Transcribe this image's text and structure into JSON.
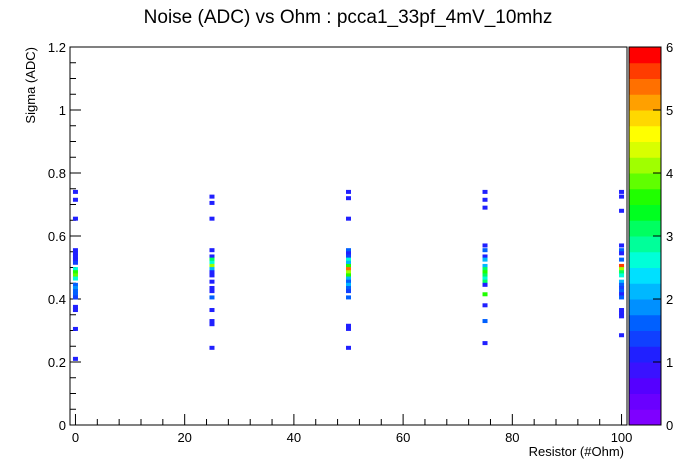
{
  "chart_data": {
    "type": "heatmap",
    "title": "Noise (ADC) vs Ohm : pcca1_33pf_4mV_10mhz",
    "xlabel": "Resistor (#Ohm)",
    "ylabel": "Sigma (ADC)",
    "xlim": [
      -1,
      101
    ],
    "ylim": [
      0,
      1.2
    ],
    "x_ticks": [
      0,
      20,
      40,
      60,
      80,
      100
    ],
    "y_ticks": [
      0,
      0.2,
      0.4,
      0.6,
      0.8,
      1,
      1.2
    ],
    "x_tick_labels": [
      "0",
      "20",
      "40",
      "60",
      "80",
      "100"
    ],
    "y_tick_labels": [
      "0",
      "0.2",
      "0.4",
      "0.6",
      "0.8",
      "1",
      "1.2"
    ],
    "colorbar": {
      "min": 0,
      "max": 6,
      "ticks": [
        0,
        1,
        2,
        3,
        4,
        5,
        6
      ],
      "tick_labels": [
        "0",
        "1",
        "2",
        "3",
        "4",
        "5",
        "6"
      ],
      "colors": [
        "#7f00ff",
        "#6a00ff",
        "#5500ff",
        "#3a12ff",
        "#2020ff",
        "#1040ff",
        "#0060ff",
        "#0090ff",
        "#00b8ff",
        "#00e0ff",
        "#00ffd8",
        "#00ff9a",
        "#00ff60",
        "#00ff20",
        "#20ff00",
        "#60ff00",
        "#a0ff00",
        "#d8ff00",
        "#ffff00",
        "#ffd800",
        "#ffa000",
        "#ff7000",
        "#ff3c00",
        "#ff0000"
      ]
    },
    "grid": false,
    "points": [
      {
        "x": 0,
        "y": 0.74,
        "z": 1
      },
      {
        "x": 0,
        "y": 0.715,
        "z": 1
      },
      {
        "x": 0,
        "y": 0.655,
        "z": 1
      },
      {
        "x": 0,
        "y": 0.555,
        "z": 1
      },
      {
        "x": 0,
        "y": 0.545,
        "z": 1
      },
      {
        "x": 0,
        "y": 0.535,
        "z": 1
      },
      {
        "x": 0,
        "y": 0.525,
        "z": 1
      },
      {
        "x": 0,
        "y": 0.515,
        "z": 1.3
      },
      {
        "x": 0,
        "y": 0.495,
        "z": 2.5
      },
      {
        "x": 0,
        "y": 0.485,
        "z": 3.5
      },
      {
        "x": 0,
        "y": 0.475,
        "z": 3.8
      },
      {
        "x": 0,
        "y": 0.465,
        "z": 2.5
      },
      {
        "x": 0,
        "y": 0.445,
        "z": 1.5
      },
      {
        "x": 0,
        "y": 0.435,
        "z": 1.8
      },
      {
        "x": 0,
        "y": 0.425,
        "z": 1.6
      },
      {
        "x": 0,
        "y": 0.415,
        "z": 1.5
      },
      {
        "x": 0,
        "y": 0.405,
        "z": 1.3
      },
      {
        "x": 0,
        "y": 0.375,
        "z": 1
      },
      {
        "x": 0,
        "y": 0.365,
        "z": 1
      },
      {
        "x": 0,
        "y": 0.305,
        "z": 1
      },
      {
        "x": 0,
        "y": 0.21,
        "z": 1
      },
      {
        "x": 25,
        "y": 0.725,
        "z": 1
      },
      {
        "x": 25,
        "y": 0.705,
        "z": 1
      },
      {
        "x": 25,
        "y": 0.655,
        "z": 1
      },
      {
        "x": 25,
        "y": 0.555,
        "z": 1
      },
      {
        "x": 25,
        "y": 0.535,
        "z": 1
      },
      {
        "x": 25,
        "y": 0.525,
        "z": 3
      },
      {
        "x": 25,
        "y": 0.515,
        "z": 2.5
      },
      {
        "x": 25,
        "y": 0.505,
        "z": 4
      },
      {
        "x": 25,
        "y": 0.495,
        "z": 2
      },
      {
        "x": 25,
        "y": 0.485,
        "z": 1
      },
      {
        "x": 25,
        "y": 0.475,
        "z": 1
      },
      {
        "x": 25,
        "y": 0.455,
        "z": 1
      },
      {
        "x": 25,
        "y": 0.435,
        "z": 1
      },
      {
        "x": 25,
        "y": 0.425,
        "z": 1
      },
      {
        "x": 25,
        "y": 0.405,
        "z": 1.7
      },
      {
        "x": 25,
        "y": 0.365,
        "z": 1
      },
      {
        "x": 25,
        "y": 0.33,
        "z": 1
      },
      {
        "x": 25,
        "y": 0.32,
        "z": 1
      },
      {
        "x": 25,
        "y": 0.245,
        "z": 1
      },
      {
        "x": 50,
        "y": 0.74,
        "z": 1
      },
      {
        "x": 50,
        "y": 0.72,
        "z": 1
      },
      {
        "x": 50,
        "y": 0.655,
        "z": 1
      },
      {
        "x": 50,
        "y": 0.555,
        "z": 1.7
      },
      {
        "x": 50,
        "y": 0.545,
        "z": 1
      },
      {
        "x": 50,
        "y": 0.535,
        "z": 1.3
      },
      {
        "x": 50,
        "y": 0.525,
        "z": 2.5
      },
      {
        "x": 50,
        "y": 0.515,
        "z": 2
      },
      {
        "x": 50,
        "y": 0.505,
        "z": 3.5
      },
      {
        "x": 50,
        "y": 0.495,
        "z": 5.3
      },
      {
        "x": 50,
        "y": 0.485,
        "z": 4
      },
      {
        "x": 50,
        "y": 0.475,
        "z": 3.5
      },
      {
        "x": 50,
        "y": 0.465,
        "z": 2.2
      },
      {
        "x": 50,
        "y": 0.455,
        "z": 1.5
      },
      {
        "x": 50,
        "y": 0.445,
        "z": 2
      },
      {
        "x": 50,
        "y": 0.435,
        "z": 1.5
      },
      {
        "x": 50,
        "y": 0.425,
        "z": 1.3
      },
      {
        "x": 50,
        "y": 0.405,
        "z": 1.5
      },
      {
        "x": 50,
        "y": 0.315,
        "z": 1
      },
      {
        "x": 50,
        "y": 0.305,
        "z": 1
      },
      {
        "x": 50,
        "y": 0.245,
        "z": 1
      },
      {
        "x": 75,
        "y": 0.74,
        "z": 1
      },
      {
        "x": 75,
        "y": 0.715,
        "z": 1
      },
      {
        "x": 75,
        "y": 0.69,
        "z": 1
      },
      {
        "x": 75,
        "y": 0.57,
        "z": 1
      },
      {
        "x": 75,
        "y": 0.555,
        "z": 1.7
      },
      {
        "x": 75,
        "y": 0.535,
        "z": 1
      },
      {
        "x": 75,
        "y": 0.525,
        "z": 2.2
      },
      {
        "x": 75,
        "y": 0.505,
        "z": 2
      },
      {
        "x": 75,
        "y": 0.495,
        "z": 3
      },
      {
        "x": 75,
        "y": 0.485,
        "z": 3.5
      },
      {
        "x": 75,
        "y": 0.475,
        "z": 3
      },
      {
        "x": 75,
        "y": 0.465,
        "z": 2.5
      },
      {
        "x": 75,
        "y": 0.455,
        "z": 3
      },
      {
        "x": 75,
        "y": 0.445,
        "z": 1
      },
      {
        "x": 75,
        "y": 0.415,
        "z": 3.5
      },
      {
        "x": 75,
        "y": 0.38,
        "z": 1
      },
      {
        "x": 75,
        "y": 0.33,
        "z": 1.7
      },
      {
        "x": 75,
        "y": 0.26,
        "z": 1
      },
      {
        "x": 100,
        "y": 0.74,
        "z": 1
      },
      {
        "x": 100,
        "y": 0.725,
        "z": 1
      },
      {
        "x": 100,
        "y": 0.68,
        "z": 1
      },
      {
        "x": 100,
        "y": 0.57,
        "z": 1
      },
      {
        "x": 100,
        "y": 0.555,
        "z": 1.5
      },
      {
        "x": 100,
        "y": 0.545,
        "z": 1
      },
      {
        "x": 100,
        "y": 0.525,
        "z": 1.5
      },
      {
        "x": 100,
        "y": 0.505,
        "z": 5.7
      },
      {
        "x": 100,
        "y": 0.495,
        "z": 4
      },
      {
        "x": 100,
        "y": 0.485,
        "z": 3
      },
      {
        "x": 100,
        "y": 0.475,
        "z": 2.5
      },
      {
        "x": 100,
        "y": 0.455,
        "z": 2
      },
      {
        "x": 100,
        "y": 0.445,
        "z": 1.5
      },
      {
        "x": 100,
        "y": 0.435,
        "z": 1.3
      },
      {
        "x": 100,
        "y": 0.425,
        "z": 1.5
      },
      {
        "x": 100,
        "y": 0.415,
        "z": 1
      },
      {
        "x": 100,
        "y": 0.405,
        "z": 1.5
      },
      {
        "x": 100,
        "y": 0.365,
        "z": 1
      },
      {
        "x": 100,
        "y": 0.355,
        "z": 1
      },
      {
        "x": 100,
        "y": 0.345,
        "z": 1
      },
      {
        "x": 100,
        "y": 0.285,
        "z": 1
      }
    ]
  }
}
